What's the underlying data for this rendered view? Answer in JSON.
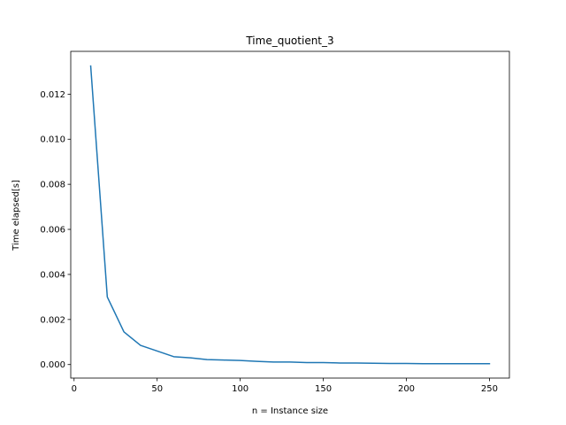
{
  "chart_data": {
    "type": "line",
    "title": "Time_quotient_3",
    "xlabel": "n = Instance size",
    "ylabel": "Time elapsed[s]",
    "xlim": [
      -2,
      262
    ],
    "ylim": [
      -0.0006,
      0.0139
    ],
    "xticks": [
      0,
      50,
      100,
      150,
      200,
      250
    ],
    "xtick_labels": [
      "0",
      "50",
      "100",
      "150",
      "200",
      "250"
    ],
    "yticks": [
      0.0,
      0.002,
      0.004,
      0.006,
      0.008,
      0.01,
      0.012
    ],
    "ytick_labels": [
      "0.000",
      "0.002",
      "0.004",
      "0.006",
      "0.008",
      "0.010",
      "0.012"
    ],
    "grid": false,
    "series": [
      {
        "color": "#1f77b4",
        "x": [
          10,
          20,
          30,
          40,
          50,
          60,
          70,
          80,
          90,
          100,
          110,
          120,
          130,
          140,
          150,
          160,
          170,
          180,
          190,
          200,
          210,
          220,
          230,
          240,
          250
        ],
        "values": [
          0.01325,
          0.003,
          0.00145,
          0.00085,
          0.0006,
          0.00035,
          0.0003,
          0.00022,
          0.0002,
          0.00018,
          0.00014,
          0.00011,
          0.00011,
          9e-05,
          9e-05,
          7e-05,
          7e-05,
          6e-05,
          5e-05,
          5e-05,
          4e-05,
          4e-05,
          4e-05,
          4e-05,
          4e-05
        ]
      }
    ]
  }
}
